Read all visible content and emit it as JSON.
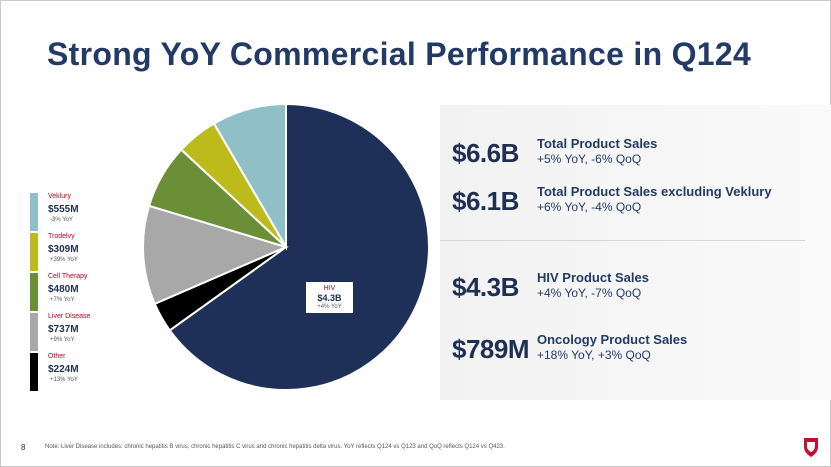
{
  "title": "Strong YoY Commercial Performance in Q124",
  "stats": [
    {
      "value": "$6.6B",
      "label": "Total Product Sales",
      "sub": "+5% YoY, -6% QoQ"
    },
    {
      "value": "$6.1B",
      "label": "Total Product Sales excluding Veklury",
      "sub": "+6% YoY, -4% QoQ"
    },
    {
      "value": "$4.3B",
      "label": "HIV Product Sales",
      "sub": "+4% YoY, -7% QoQ"
    },
    {
      "value": "$789M",
      "label": "Oncology Product Sales",
      "sub": "+18% YoY, +3% QoQ"
    }
  ],
  "hiv_label": {
    "name": "HIV",
    "value": "$4.3B",
    "yoy": "+4% YoY"
  },
  "legend": [
    {
      "name": "Veklury",
      "value": "$555M",
      "yoy": "-3% YoY",
      "color": "#8fc0c8"
    },
    {
      "name": "Trodelvy",
      "value": "$309M",
      "yoy": "+39% YoY",
      "color": "#bdbb1c"
    },
    {
      "name": "Cell Therapy",
      "value": "$480M",
      "yoy": "+7% YoY",
      "color": "#6a8f37"
    },
    {
      "name": "Liver Disease",
      "value": "$737M",
      "yoy": "+9% YoY",
      "color": "#a8a8a8"
    },
    {
      "name": "Other",
      "value": "$224M",
      "yoy": "+13% YoY",
      "color": "#000000"
    }
  ],
  "chart_data": {
    "type": "pie",
    "unit": "$M",
    "slices": [
      {
        "name": "HIV",
        "value": 4300,
        "color": "#1f3058"
      },
      {
        "name": "Other",
        "value": 224,
        "color": "#000000"
      },
      {
        "name": "Liver Disease",
        "value": 737,
        "color": "#a8a8a8"
      },
      {
        "name": "Cell Therapy",
        "value": 480,
        "color": "#6a8f37"
      },
      {
        "name": "Trodelvy",
        "value": 309,
        "color": "#bdbb1c"
      },
      {
        "name": "Veklury",
        "value": 555,
        "color": "#8fc0c8"
      }
    ]
  },
  "page_number": "8",
  "footnote": "Note: Liver Disease includes: chronic hepatitis B virus, chronic hepatitis C virus and chronic hepatitis delta virus. YoY reflects Q124 vs Q123 and QoQ reflects Q124 vs Q423."
}
